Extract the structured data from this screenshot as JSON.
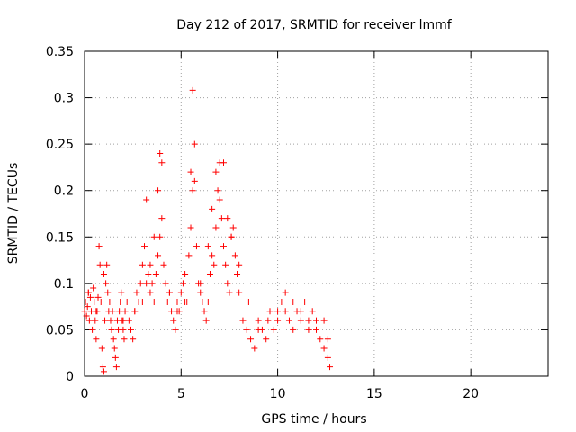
{
  "chart_data": {
    "type": "scatter",
    "title": "Day 212 of 2017, SRMTID for receiver lmmf",
    "xlabel": "GPS time / hours",
    "ylabel": "SRMTID / TECUs",
    "xlim": [
      0,
      24
    ],
    "ylim": [
      0,
      0.35
    ],
    "xticks": [
      0,
      5,
      10,
      15,
      20
    ],
    "xtick_labels": [
      "0",
      "5",
      "10",
      "15",
      "20"
    ],
    "yticks": [
      0,
      0.05,
      0.1,
      0.15,
      0.2,
      0.25,
      0.3,
      0.35
    ],
    "ytick_labels": [
      "0",
      "0.05",
      "0.1",
      "0.15",
      "0.2",
      "0.25",
      "0.3",
      "0.35"
    ],
    "grid": true,
    "marker": "+",
    "color": "#ff0000",
    "series": [
      {
        "name": "SRMTID",
        "x": [
          0.0,
          0.05,
          0.1,
          0.15,
          0.2,
          0.25,
          0.3,
          0.35,
          0.4,
          0.45,
          0.5,
          0.55,
          0.6,
          0.65,
          0.7,
          0.75,
          0.8,
          0.85,
          0.9,
          0.95,
          1.0,
          1.05,
          1.1,
          1.15,
          1.2,
          1.25,
          1.3,
          1.35,
          1.4,
          1.45,
          1.5,
          1.55,
          1.6,
          1.65,
          1.7,
          1.75,
          1.8,
          1.85,
          1.9,
          1.95,
          2.0,
          2.05,
          2.1,
          2.2,
          2.3,
          2.4,
          2.5,
          2.6,
          2.7,
          2.8,
          2.9,
          3.0,
          3.1,
          3.2,
          3.3,
          3.4,
          3.5,
          3.6,
          3.7,
          3.8,
          3.9,
          4.0,
          4.1,
          4.2,
          4.3,
          4.4,
          4.5,
          4.6,
          4.7,
          4.8,
          4.9,
          5.0,
          5.1,
          5.2,
          5.3,
          5.4,
          5.5,
          5.6,
          5.7,
          5.8,
          5.9,
          6.0,
          6.1,
          6.2,
          6.3,
          6.4,
          6.5,
          6.6,
          6.7,
          6.8,
          6.9,
          7.0,
          7.1,
          7.2,
          7.3,
          7.4,
          7.5,
          7.6,
          7.7,
          7.8,
          7.9,
          8.0,
          8.2,
          8.4,
          8.6,
          8.8,
          9.0,
          9.2,
          9.4,
          9.6,
          9.8,
          10.0,
          10.2,
          10.4,
          10.6,
          10.8,
          11.0,
          11.2,
          11.4,
          11.6,
          11.8,
          12.0,
          12.2,
          12.4,
          12.6,
          12.7,
          0.2,
          0.6,
          1.0,
          1.4,
          2.0,
          2.6,
          3.0,
          3.2,
          3.4,
          3.6,
          3.8,
          3.9,
          4.0,
          4.4,
          4.8,
          5.2,
          5.5,
          5.6,
          5.7,
          6.0,
          6.4,
          6.6,
          6.8,
          7.0,
          7.2,
          7.4,
          7.6,
          8.0,
          8.5,
          9.0,
          9.5,
          10.0,
          10.4,
          10.8,
          11.2,
          11.6,
          12.0,
          12.4,
          12.6
        ],
        "y": [
          0.07,
          0.08,
          0.065,
          0.075,
          0.09,
          0.06,
          0.085,
          0.07,
          0.05,
          0.095,
          0.08,
          0.06,
          0.04,
          0.07,
          0.085,
          0.14,
          0.12,
          0.08,
          0.03,
          0.01,
          0.005,
          0.06,
          0.1,
          0.12,
          0.09,
          0.07,
          0.08,
          0.06,
          0.05,
          0.07,
          0.04,
          0.03,
          0.02,
          0.01,
          0.06,
          0.05,
          0.07,
          0.08,
          0.09,
          0.06,
          0.05,
          0.04,
          0.07,
          0.08,
          0.06,
          0.05,
          0.04,
          0.07,
          0.09,
          0.08,
          0.1,
          0.12,
          0.14,
          0.19,
          0.11,
          0.09,
          0.1,
          0.08,
          0.11,
          0.13,
          0.15,
          0.17,
          0.12,
          0.1,
          0.08,
          0.09,
          0.07,
          0.06,
          0.05,
          0.08,
          0.07,
          0.09,
          0.1,
          0.11,
          0.08,
          0.13,
          0.16,
          0.2,
          0.25,
          0.14,
          0.1,
          0.09,
          0.08,
          0.07,
          0.06,
          0.08,
          0.11,
          0.13,
          0.12,
          0.16,
          0.2,
          0.23,
          0.17,
          0.14,
          0.12,
          0.1,
          0.09,
          0.15,
          0.16,
          0.13,
          0.11,
          0.09,
          0.06,
          0.05,
          0.04,
          0.03,
          0.06,
          0.05,
          0.04,
          0.07,
          0.05,
          0.06,
          0.08,
          0.07,
          0.06,
          0.05,
          0.07,
          0.06,
          0.08,
          0.05,
          0.07,
          0.06,
          0.04,
          0.03,
          0.02,
          0.01,
          0.09,
          0.07,
          0.11,
          0.05,
          0.06,
          0.07,
          0.08,
          0.1,
          0.12,
          0.15,
          0.2,
          0.24,
          0.23,
          0.09,
          0.07,
          0.08,
          0.22,
          0.308,
          0.21,
          0.1,
          0.14,
          0.18,
          0.22,
          0.19,
          0.23,
          0.17,
          0.15,
          0.12,
          0.08,
          0.05,
          0.06,
          0.07,
          0.09,
          0.08,
          0.07,
          0.06,
          0.05,
          0.06,
          0.04
        ]
      }
    ]
  }
}
